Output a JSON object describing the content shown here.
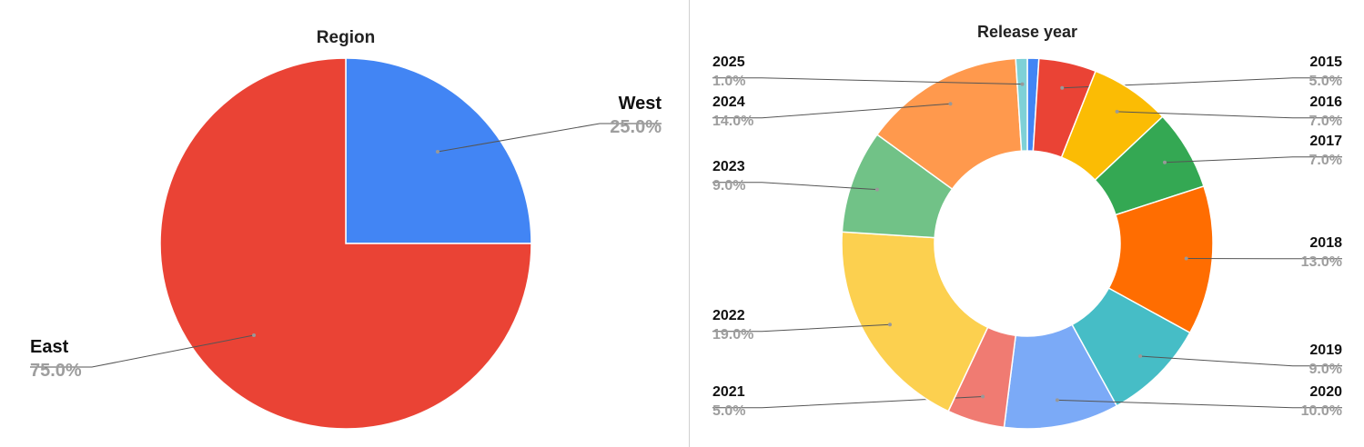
{
  "chart_data": [
    {
      "type": "pie",
      "title": "Region",
      "categories": [
        "West",
        "East"
      ],
      "values": [
        25,
        75
      ],
      "value_labels": [
        "25.0%",
        "75.0%"
      ],
      "colors": [
        "#4285f4",
        "#ea4335"
      ]
    },
    {
      "type": "donut",
      "title": "Release year",
      "categories": [
        null,
        "2015",
        "2016",
        "2017",
        "2018",
        "2019",
        "2020",
        "2021",
        "2022",
        "2023",
        "2024",
        "2025"
      ],
      "values": [
        1,
        5,
        7,
        7,
        13,
        9,
        10,
        5,
        19,
        9,
        14,
        1
      ],
      "value_labels": [
        null,
        "5.0%",
        "7.0%",
        "7.0%",
        "13.0%",
        "9.0%",
        "10.0%",
        "5.0%",
        "19.0%",
        "9.0%",
        "14.0%",
        "1.0%"
      ],
      "colors": [
        "#4285f4",
        "#ea4335",
        "#fbbc04",
        "#34a853",
        "#ff6d01",
        "#46bdc6",
        "#7baaf7",
        "#f07b72",
        "#fcd04f",
        "#71c287",
        "#ff994d",
        "#7ed1d7"
      ]
    }
  ]
}
